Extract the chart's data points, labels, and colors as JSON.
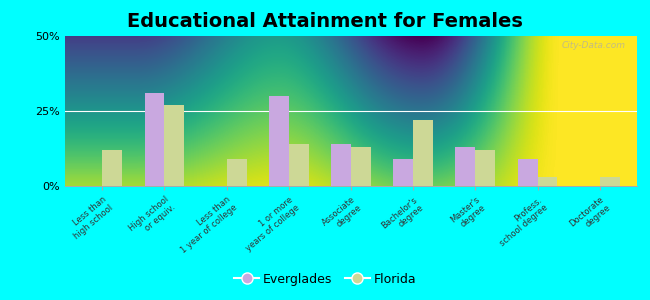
{
  "title": "Educational Attainment for Females",
  "categories": [
    "Less than\nhigh school",
    "High school\nor equiv.",
    "Less than\n1 year of college",
    "1 or more\nyears of college",
    "Associate\ndegree",
    "Bachelor's\ndegree",
    "Master's\ndegree",
    "Profess.\nschool degree",
    "Doctorate\ndegree"
  ],
  "everglades": [
    0.0,
    31.0,
    0.0,
    30.0,
    14.0,
    9.0,
    13.0,
    9.0,
    0.0
  ],
  "florida": [
    12.0,
    27.0,
    9.0,
    14.0,
    13.0,
    22.0,
    12.0,
    3.0,
    3.0
  ],
  "everglades_color": "#c9a8e0",
  "florida_color": "#cdd896",
  "background_color": "#00ffff",
  "ylabel_ticks": [
    "0%",
    "25%",
    "50%"
  ],
  "yticks": [
    0,
    25,
    50
  ],
  "ylim": [
    0,
    50
  ],
  "bar_width": 0.32,
  "title_fontsize": 14,
  "legend_labels": [
    "Everglades",
    "Florida"
  ],
  "watermark": "City-Data.com"
}
